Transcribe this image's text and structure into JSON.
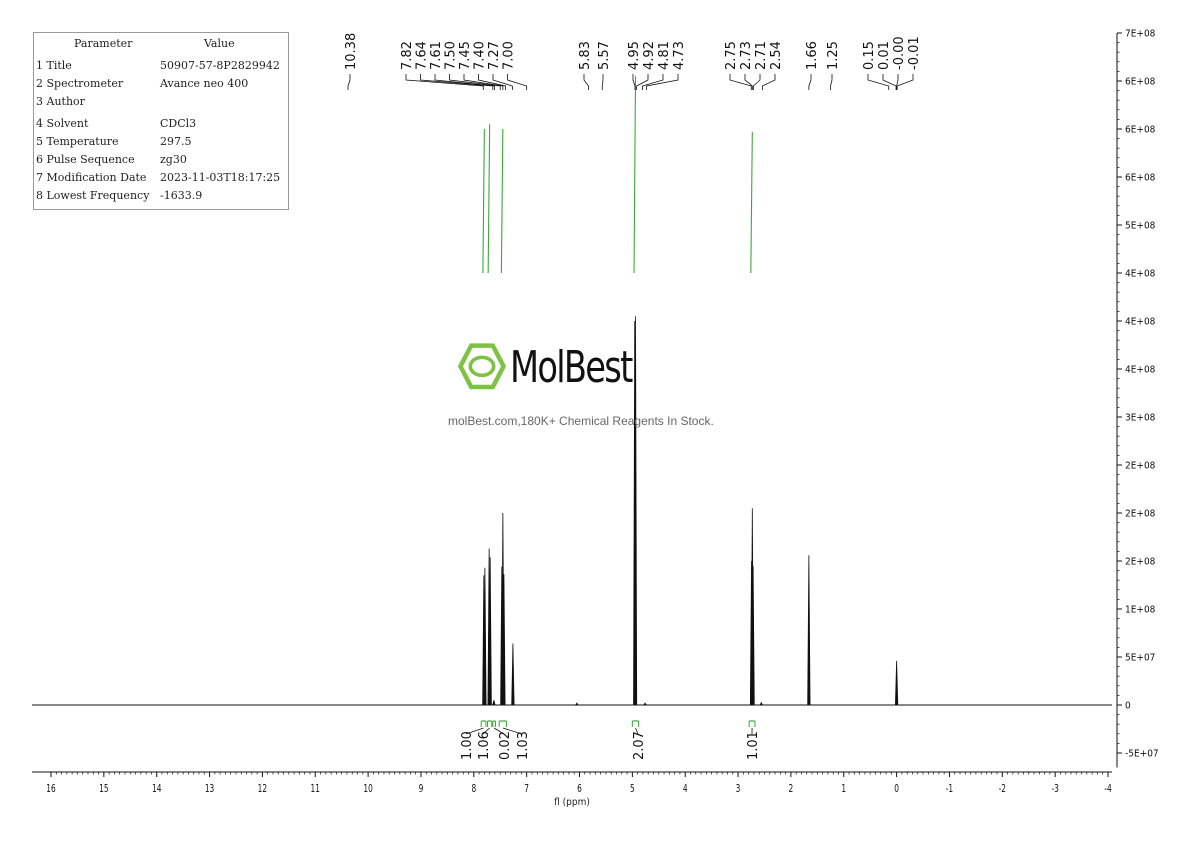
{
  "parameters": {
    "header": {
      "col1": "Parameter",
      "col2": "Value"
    },
    "rows": [
      {
        "name": "1 Title",
        "value": "50907-57-8P2829942"
      },
      {
        "name": "2 Spectrometer",
        "value": "Avance neo 400"
      },
      {
        "name": "3 Author",
        "value": ""
      },
      {
        "name": "4 Solvent",
        "value": "CDCl3"
      },
      {
        "name": "5 Temperature",
        "value": "297.5"
      },
      {
        "name": "6 Pulse Sequence",
        "value": "zg30"
      },
      {
        "name": "7 Modification Date",
        "value": "2023-11-03T18:17:25"
      },
      {
        "name": "8 Lowest Frequency",
        "value": "-1633.9"
      }
    ]
  },
  "watermark": {
    "brand": "MolBest",
    "tagline": "molBest.com,180K+ Chemical Reagents In Stock.",
    "brand_color": "#7dc242"
  },
  "chart_data": {
    "type": "line",
    "xlabel": "fl (ppm)",
    "xlim": [
      16.5,
      -4
    ],
    "x_ticks": [
      "16",
      "15",
      "14",
      "13",
      "12",
      "11",
      "10",
      "9",
      "8",
      "7",
      "6",
      "5",
      "4",
      "3",
      "2",
      "1",
      "0",
      "-1",
      "-2",
      "-3",
      "-4"
    ],
    "y_ticks": [
      "-5E+07",
      "0",
      "5E+07",
      "1E+08",
      "2E+08",
      "2E+08",
      "2E+08",
      "3E+08",
      "4E+08",
      "4E+08",
      "4E+08",
      "5E+08",
      "6E+08",
      "6E+08",
      "6E+08",
      "7E+08"
    ],
    "y_tick_values": [
      -50000000,
      0,
      50000000,
      100000000,
      150000000,
      200000000,
      250000000,
      300000000,
      350000000,
      400000000,
      450000000,
      500000000,
      550000000,
      600000000,
      650000000,
      700000000
    ],
    "ylim": [
      -65000000,
      700000000
    ],
    "peak_labels": [
      {
        "group": 1,
        "labels": [
          "10.38"
        ],
        "ppm": [
          10.38
        ]
      },
      {
        "group": 2,
        "labels": [
          "7.82",
          "7.64",
          "7.61",
          "7.50",
          "7.45",
          "7.40",
          "7.27",
          "7.00"
        ],
        "ppm": [
          7.82,
          7.64,
          7.61,
          7.5,
          7.45,
          7.4,
          7.27,
          7.0
        ]
      },
      {
        "group": 3,
        "labels": [
          "5.83",
          "5.57"
        ],
        "ppm": [
          5.83,
          5.57
        ]
      },
      {
        "group": 4,
        "labels": [
          "4.95",
          "4.92",
          "4.81",
          "4.73"
        ],
        "ppm": [
          4.95,
          4.92,
          4.81,
          4.73
        ]
      },
      {
        "group": 5,
        "labels": [
          "2.75",
          "2.73",
          "2.71",
          "2.54"
        ],
        "ppm": [
          2.75,
          2.73,
          2.71,
          2.54
        ]
      },
      {
        "group": 6,
        "labels": [
          "1.66",
          "1.25"
        ],
        "ppm": [
          1.66,
          1.25
        ]
      },
      {
        "group": 7,
        "labels": [
          "0.15",
          "0.01",
          "-0.00",
          "-0.01"
        ],
        "ppm": [
          0.15,
          0.01,
          0.0,
          -0.01
        ]
      }
    ],
    "peaks": [
      {
        "ppm": 7.81,
        "height": 135000000
      },
      {
        "ppm": 7.79,
        "height": 143000000
      },
      {
        "ppm": 7.71,
        "height": 163000000
      },
      {
        "ppm": 7.69,
        "height": 154000000
      },
      {
        "ppm": 7.62,
        "height": 5000000
      },
      {
        "ppm": 7.47,
        "height": 144000000
      },
      {
        "ppm": 7.45,
        "height": 200000000
      },
      {
        "ppm": 7.43,
        "height": 136000000
      },
      {
        "ppm": 7.26,
        "height": 64000000
      },
      {
        "ppm": 6.05,
        "height": 2000000
      },
      {
        "ppm": 4.955,
        "height": 400000000
      },
      {
        "ppm": 4.94,
        "height": 405000000
      },
      {
        "ppm": 4.76,
        "height": 2000000
      },
      {
        "ppm": 2.745,
        "height": 150000000
      },
      {
        "ppm": 2.73,
        "height": 205000000
      },
      {
        "ppm": 2.715,
        "height": 145000000
      },
      {
        "ppm": 2.56,
        "height": 2500000
      },
      {
        "ppm": 1.66,
        "height": 156000000
      },
      {
        "ppm": 0.0,
        "height": 46000000
      }
    ],
    "integrals": [
      {
        "label": "1.00",
        "from": 7.86,
        "to": 7.77
      },
      {
        "label": "1.06",
        "from": 7.74,
        "to": 7.66
      },
      {
        "label": "0.02",
        "from": 7.64,
        "to": 7.59
      },
      {
        "label": "1.03",
        "from": 7.52,
        "to": 7.38
      },
      {
        "label": "2.07",
        "from": 5.0,
        "to": 4.88
      },
      {
        "label": "1.01",
        "from": 2.79,
        "to": 2.68
      }
    ],
    "integral_color": "#3aa83a"
  }
}
